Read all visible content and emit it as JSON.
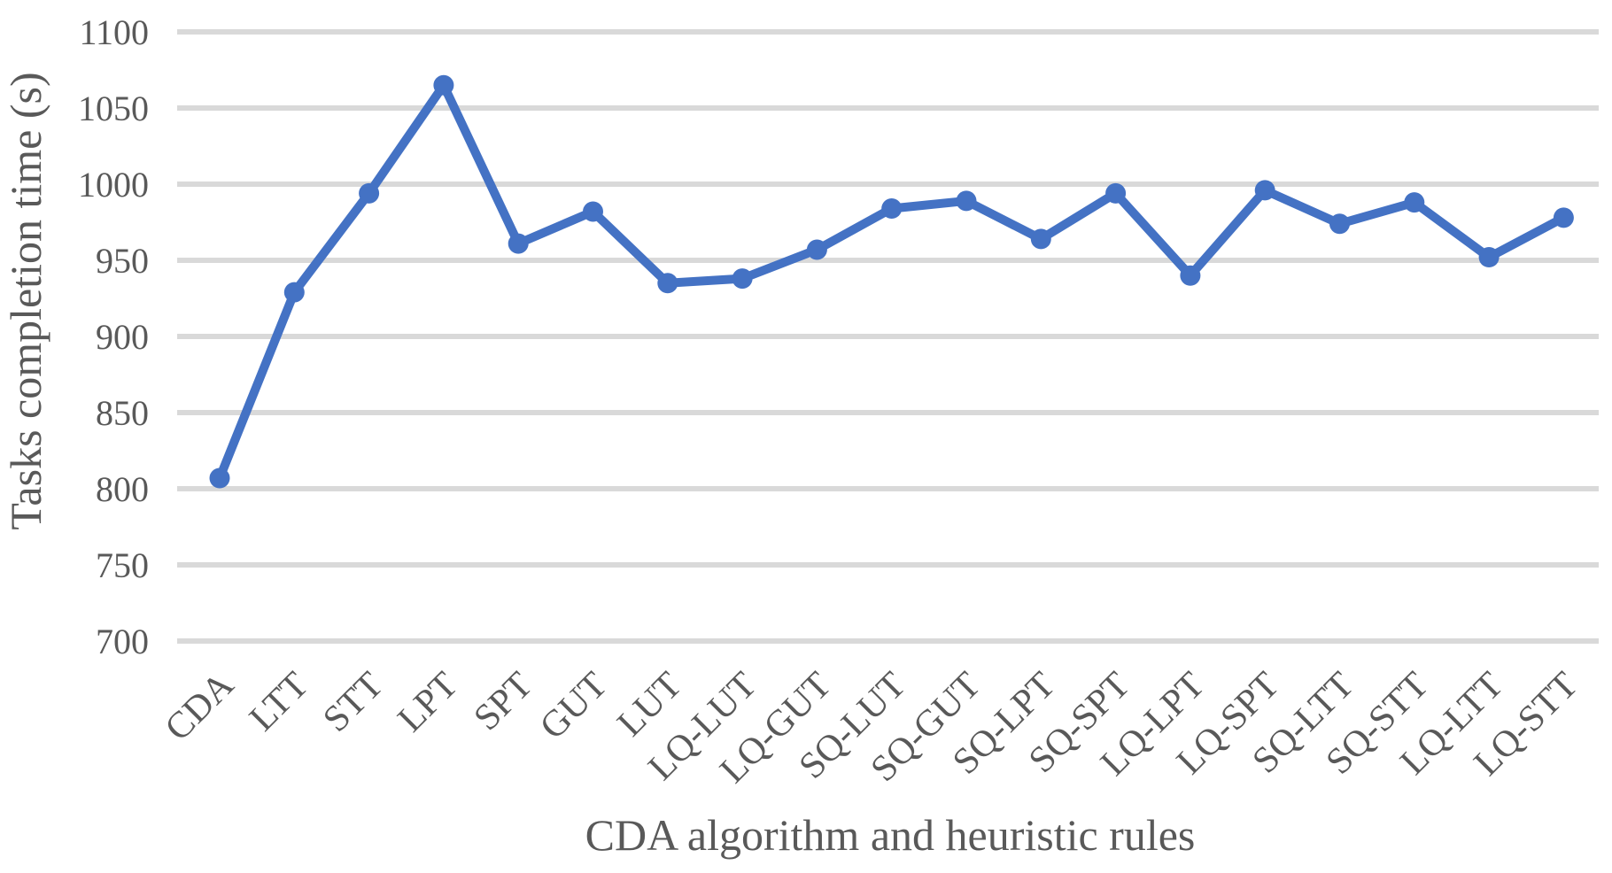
{
  "chart_data": {
    "type": "line",
    "title": "",
    "xlabel": "CDA algorithm and heuristic rules",
    "ylabel": "Tasks completion time (s)",
    "categories": [
      "CDA",
      "LTT",
      "STT",
      "LPT",
      "SPT",
      "GUT",
      "LUT",
      "LQ-LUT",
      "LQ-GUT",
      "SQ-LUT",
      "SQ-GUT",
      "SQ-LPT",
      "SQ-SPT",
      "LQ-LPT",
      "LQ-SPT",
      "SQ-LTT",
      "SQ-STT",
      "LQ-LTT",
      "LQ-STT"
    ],
    "values": [
      807,
      929,
      994,
      1065,
      961,
      982,
      935,
      938,
      957,
      984,
      989,
      964,
      994,
      940,
      996,
      974,
      988,
      952,
      978
    ],
    "ylim": [
      700,
      1100
    ],
    "ytick_step": 50,
    "yticks": [
      700,
      750,
      800,
      850,
      900,
      950,
      1000,
      1050,
      1100
    ],
    "grid": "horizontal",
    "legend": "none",
    "marker": "circle",
    "series_name": "Tasks completion time",
    "style": {
      "series_color": "#4472C4",
      "gridline_color": "#D9D9D9",
      "text_color": "#595959",
      "background": "#ffffff"
    }
  }
}
